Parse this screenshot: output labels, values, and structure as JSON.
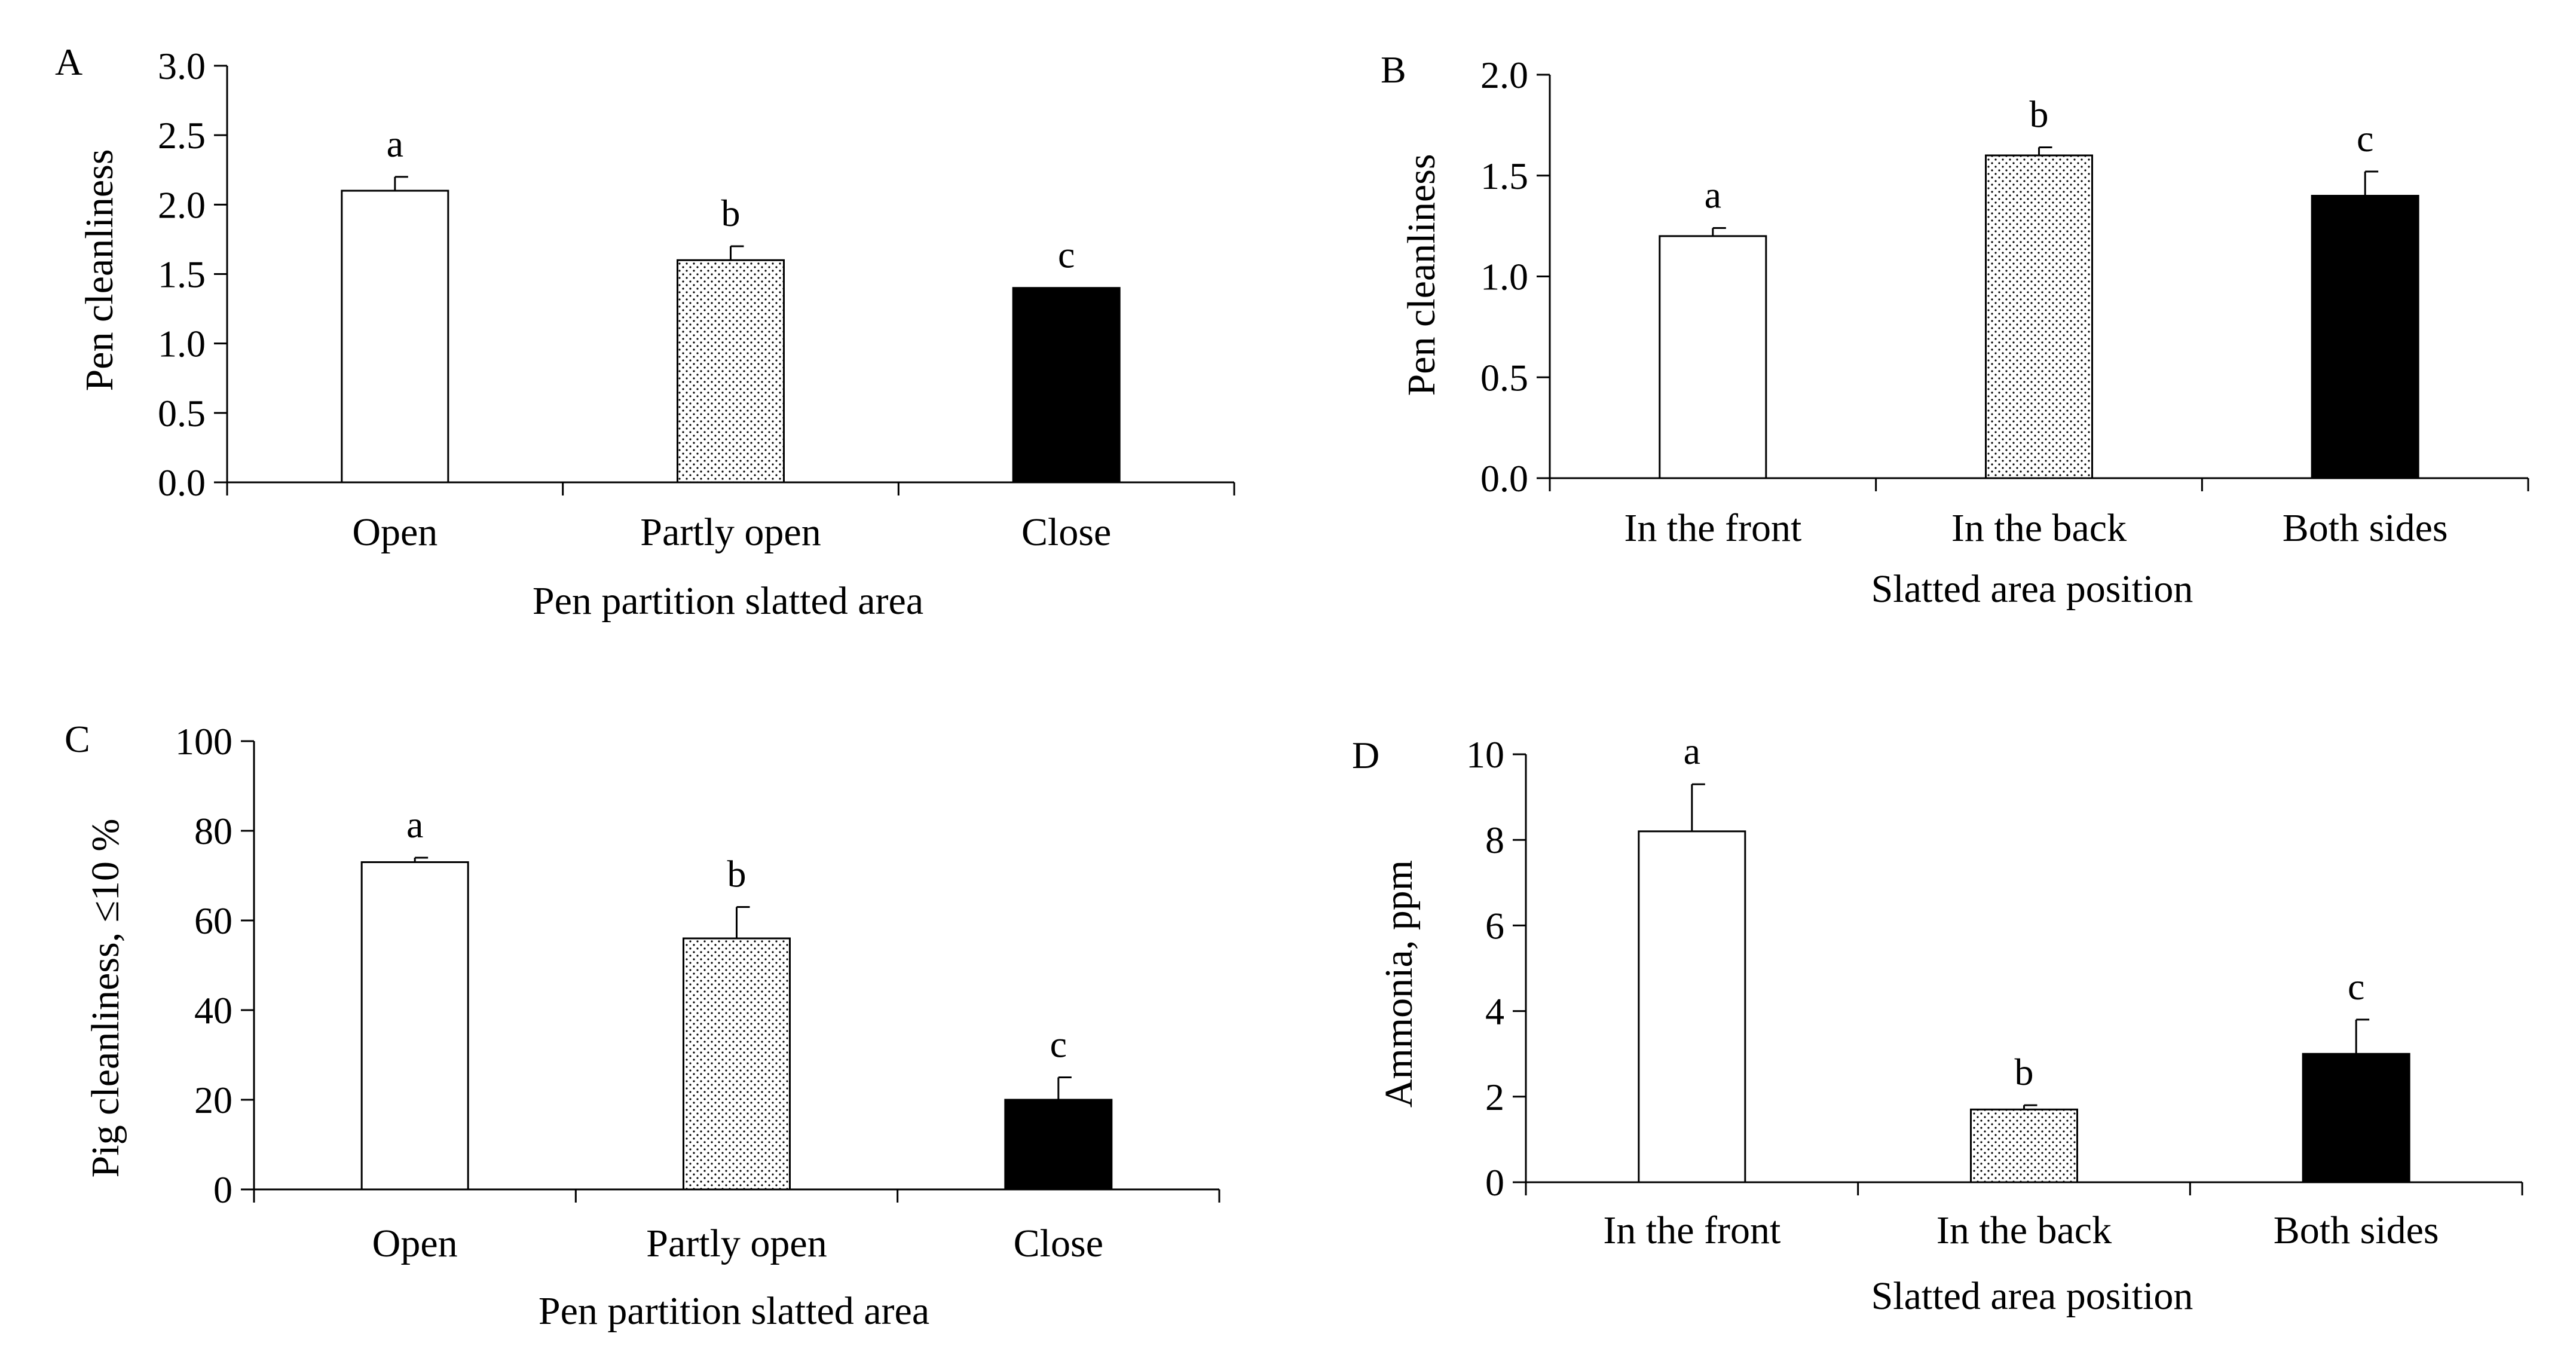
{
  "figure": {
    "panels": [
      "A",
      "B",
      "C",
      "D"
    ]
  },
  "chart_data": [
    {
      "panel_label": "A",
      "type": "bar",
      "categories": [
        "Open",
        "Partly open",
        "Close"
      ],
      "values": [
        2.1,
        1.6,
        1.4
      ],
      "errors": [
        0.1,
        0.1,
        0.0
      ],
      "letters": [
        "a",
        "b",
        "c"
      ],
      "fills": [
        "white",
        "dots",
        "black"
      ],
      "xlabel": "Pen partition slatted area",
      "ylabel": "Pen cleanliness",
      "ylim": [
        0,
        3.0
      ],
      "yticks": [
        "0.0",
        "0.5",
        "1.0",
        "1.5",
        "2.0",
        "2.5",
        "3.0"
      ]
    },
    {
      "panel_label": "B",
      "type": "bar",
      "categories": [
        "In the front",
        "In the back",
        "Both sides"
      ],
      "values": [
        1.2,
        1.6,
        1.4
      ],
      "errors": [
        0.04,
        0.04,
        0.12
      ],
      "letters": [
        "a",
        "b",
        "c"
      ],
      "fills": [
        "white",
        "dots",
        "black"
      ],
      "xlabel": "Slatted area position",
      "ylabel": "Pen cleanliness",
      "ylim": [
        0,
        2.0
      ],
      "yticks": [
        "0.0",
        "0.5",
        "1.0",
        "1.5",
        "2.0"
      ]
    },
    {
      "panel_label": "C",
      "type": "bar",
      "categories": [
        "Open",
        "Partly open",
        "Close"
      ],
      "values": [
        73,
        56,
        20
      ],
      "errors": [
        1,
        7,
        5
      ],
      "letters": [
        "a",
        "b",
        "c"
      ],
      "fills": [
        "white",
        "dots",
        "black"
      ],
      "xlabel": "Pen partition slatted area",
      "ylabel": "Pig cleanliness, ≤10 %",
      "ylim": [
        0,
        100
      ],
      "yticks": [
        "0",
        "20",
        "40",
        "60",
        "80",
        "100"
      ]
    },
    {
      "panel_label": "D",
      "type": "bar",
      "categories": [
        "In the front",
        "In the back",
        "Both sides"
      ],
      "values": [
        8.2,
        1.7,
        3.0
      ],
      "errors": [
        1.1,
        0.1,
        0.8
      ],
      "letters": [
        "a",
        "b",
        "c"
      ],
      "fills": [
        "white",
        "dots",
        "black"
      ],
      "xlabel": "Slatted area position",
      "ylabel": "Ammonia, ppm",
      "ylim": [
        0,
        10
      ],
      "yticks": [
        "0",
        "2",
        "4",
        "6",
        "8",
        "10"
      ]
    }
  ]
}
